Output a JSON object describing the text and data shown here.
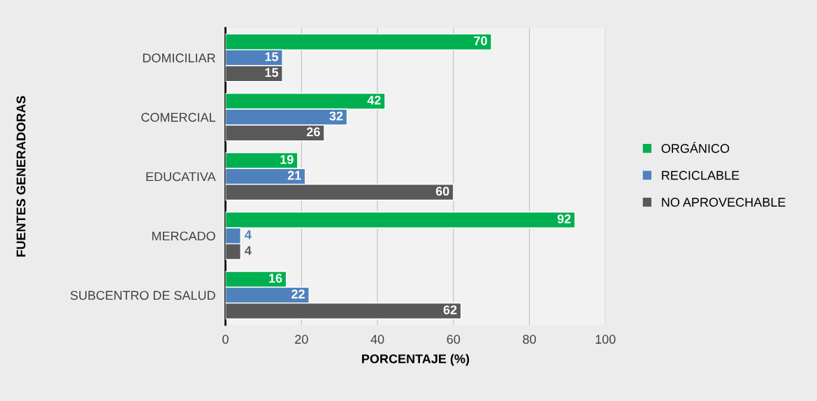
{
  "chart_data": {
    "type": "bar",
    "orientation": "horizontal",
    "xlabel": "PORCENTAJE (%)",
    "ylabel": "FUENTES GENERADORAS",
    "categories": [
      "DOMICILIAR",
      "COMERCIAL",
      "EDUCATIVA",
      "MERCADO",
      "SUBCENTRO DE SALUD"
    ],
    "series": [
      {
        "name": "ORGÁNICO",
        "color": "#00b050",
        "values": [
          70,
          42,
          19,
          92,
          16
        ]
      },
      {
        "name": "RECICLABLE",
        "color": "#4f81bd",
        "values": [
          15,
          32,
          21,
          4,
          22
        ]
      },
      {
        "name": "NO APROVECHABLE",
        "color": "#595959",
        "values": [
          15,
          26,
          60,
          4,
          62
        ]
      }
    ],
    "xlim": [
      0,
      100
    ],
    "xticks": [
      0,
      20,
      40,
      60,
      80,
      100
    ],
    "grid": "x",
    "legend": "right",
    "data_labels": true
  }
}
